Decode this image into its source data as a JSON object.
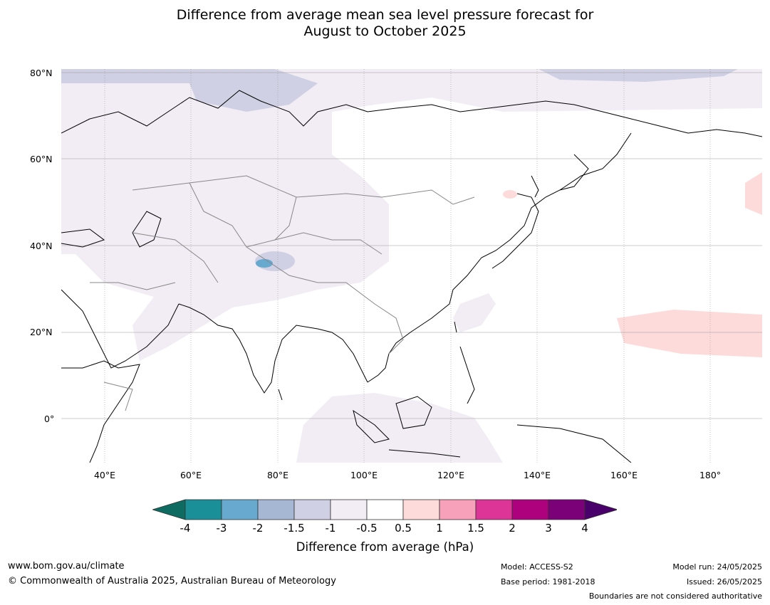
{
  "title": {
    "line1": "Difference from average mean sea level pressure forecast for",
    "line2": "August to October 2025"
  },
  "map": {
    "lat_labels": [
      "80°N",
      "60°N",
      "40°N",
      "20°N",
      "0°"
    ],
    "lon_labels": [
      "40°E",
      "60°E",
      "80°E",
      "100°E",
      "120°E",
      "140°E",
      "160°E",
      "180°"
    ],
    "lon_range": [
      30,
      192
    ],
    "lat_range": [
      -10,
      81
    ]
  },
  "colorbar": {
    "ticks": [
      "-4",
      "-3",
      "-2",
      "-1.5",
      "-1",
      "-0.5",
      "0.5",
      "1",
      "1.5",
      "2",
      "3",
      "4"
    ],
    "colors": [
      "#0e6b61",
      "#1a8f97",
      "#67a9cf",
      "#a6b7d4",
      "#cfd0e3",
      "#f2ecf5",
      "#ffffff",
      "#fddbdb",
      "#f7a1bb",
      "#dd3497",
      "#ae017e",
      "#7a0177",
      "#49006a"
    ],
    "label": "Difference from average (hPa)"
  },
  "footer": {
    "website": "www.bom.gov.au/climate",
    "copyright": "© Commonwealth of Australia 2025, Australian Bureau of Meteorology",
    "model": "Model: ACCESS-S2",
    "base_period": "Base period: 1981-2018",
    "model_run": "Model run: 24/05/2025",
    "issued": "Issued: 26/05/2025",
    "disclaimer": "Boundaries are not considered authoritative"
  }
}
